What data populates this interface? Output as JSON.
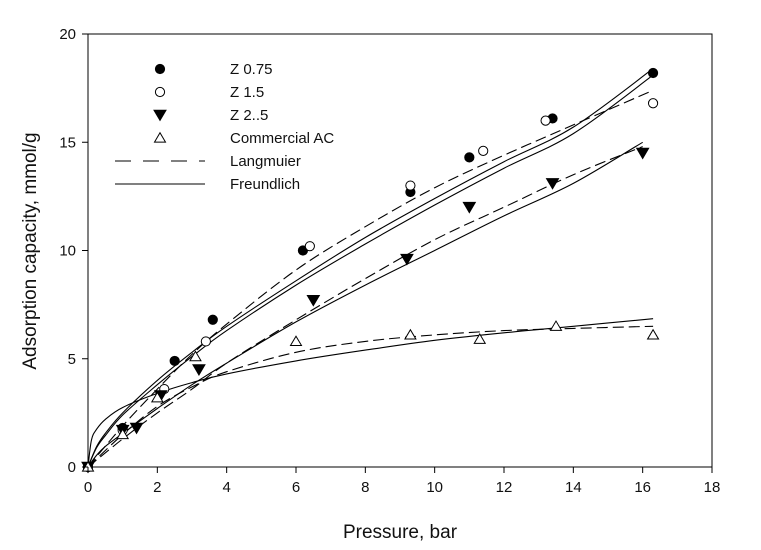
{
  "chart_data": {
    "type": "scatter",
    "title": "",
    "xlabel": "Pressure, bar",
    "ylabel": "Adsorption capacity, mmol/g",
    "xlim": [
      0,
      18
    ],
    "ylim": [
      0,
      20
    ],
    "xticks": [
      0,
      2,
      4,
      6,
      8,
      10,
      12,
      14,
      16,
      18
    ],
    "yticks": [
      0,
      5,
      10,
      15,
      20
    ],
    "grid": false,
    "legend_position": "top-left",
    "series": [
      {
        "name": "Z 0.75",
        "marker": "filled-circle",
        "x": [
          0,
          1.0,
          2.5,
          3.6,
          6.2,
          9.3,
          11.0,
          13.4,
          16.3
        ],
        "y": [
          0,
          1.8,
          4.9,
          6.8,
          10.0,
          12.7,
          14.3,
          16.1,
          18.2
        ]
      },
      {
        "name": "Z 1.5",
        "marker": "open-circle",
        "x": [
          0,
          1.0,
          2.2,
          3.4,
          6.4,
          9.3,
          11.4,
          13.2,
          16.3
        ],
        "y": [
          0,
          1.7,
          3.6,
          5.8,
          10.2,
          13.0,
          14.6,
          16.0,
          16.8
        ]
      },
      {
        "name": "Z 2..5",
        "marker": "filled-triangle-down",
        "x": [
          0,
          1.0,
          1.4,
          2.1,
          3.2,
          6.5,
          9.2,
          11.0,
          13.4,
          16.0
        ],
        "y": [
          0,
          1.7,
          1.8,
          3.3,
          4.5,
          7.7,
          9.6,
          12.0,
          13.1,
          14.5
        ]
      },
      {
        "name": "Commercial AC",
        "marker": "open-triangle-up",
        "x": [
          0,
          1.0,
          2.0,
          3.1,
          6.0,
          9.3,
          11.3,
          13.5,
          16.3
        ],
        "y": [
          0,
          1.5,
          3.2,
          5.1,
          5.8,
          6.1,
          5.9,
          6.5,
          6.1
        ]
      }
    ],
    "fits": [
      {
        "name": "Langmuier",
        "style": "dashed",
        "curves": [
          {
            "x": [
              0,
              1,
              2,
              3,
              4,
              6,
              8,
              10,
              12,
              14,
              16.3
            ],
            "y": [
              0,
              1.9,
              3.6,
              5.2,
              6.6,
              9.1,
              11.1,
              12.9,
              14.4,
              15.8,
              17.4
            ]
          },
          {
            "x": [
              0,
              1,
              2,
              3,
              4,
              6,
              8,
              10,
              12,
              14,
              16
            ],
            "y": [
              0,
              1.3,
              2.5,
              3.6,
              4.8,
              6.8,
              8.7,
              10.5,
              12.0,
              13.5,
              14.8
            ]
          },
          {
            "x": [
              0,
              1,
              2,
              3,
              4,
              6,
              8,
              10,
              12,
              14,
              16.3
            ],
            "y": [
              0,
              1.5,
              2.8,
              3.7,
              4.4,
              5.3,
              5.8,
              6.1,
              6.3,
              6.4,
              6.5
            ]
          }
        ]
      },
      {
        "name": "Freundlich",
        "style": "solid",
        "curves": [
          {
            "x": [
              0,
              0.25,
              0.5,
              1,
              2,
              3,
              4,
              6,
              8,
              10,
              12,
              14,
              16.3
            ],
            "y": [
              0,
              0.95,
              1.55,
              2.5,
              4.0,
              5.3,
              6.5,
              8.6,
              10.6,
              12.4,
              14.1,
              15.7,
              18.4
            ]
          },
          {
            "x": [
              0,
              0.25,
              0.5,
              1,
              2,
              3,
              4,
              6,
              8,
              10,
              12,
              14,
              16.3
            ],
            "y": [
              0,
              0.9,
              1.45,
              2.4,
              3.8,
              5.1,
              6.3,
              8.4,
              10.3,
              12.1,
              13.8,
              15.4,
              18.1
            ]
          },
          {
            "x": [
              0,
              0.25,
              0.5,
              1,
              2,
              3,
              4,
              6,
              8,
              10,
              12,
              14,
              16
            ],
            "y": [
              0,
              0.55,
              0.95,
              1.55,
              2.7,
              3.8,
              4.8,
              6.7,
              8.4,
              10.0,
              11.6,
              13.1,
              15.0
            ]
          },
          {
            "x": [
              0,
              0.1,
              0.25,
              0.5,
              1,
              2,
              3,
              4,
              6,
              8,
              10,
              12,
              14,
              16.3
            ],
            "y": [
              0,
              1.25,
              1.75,
              2.2,
              2.75,
              3.4,
              3.9,
              4.3,
              4.9,
              5.4,
              5.85,
              6.2,
              6.5,
              6.85
            ]
          }
        ]
      }
    ]
  }
}
